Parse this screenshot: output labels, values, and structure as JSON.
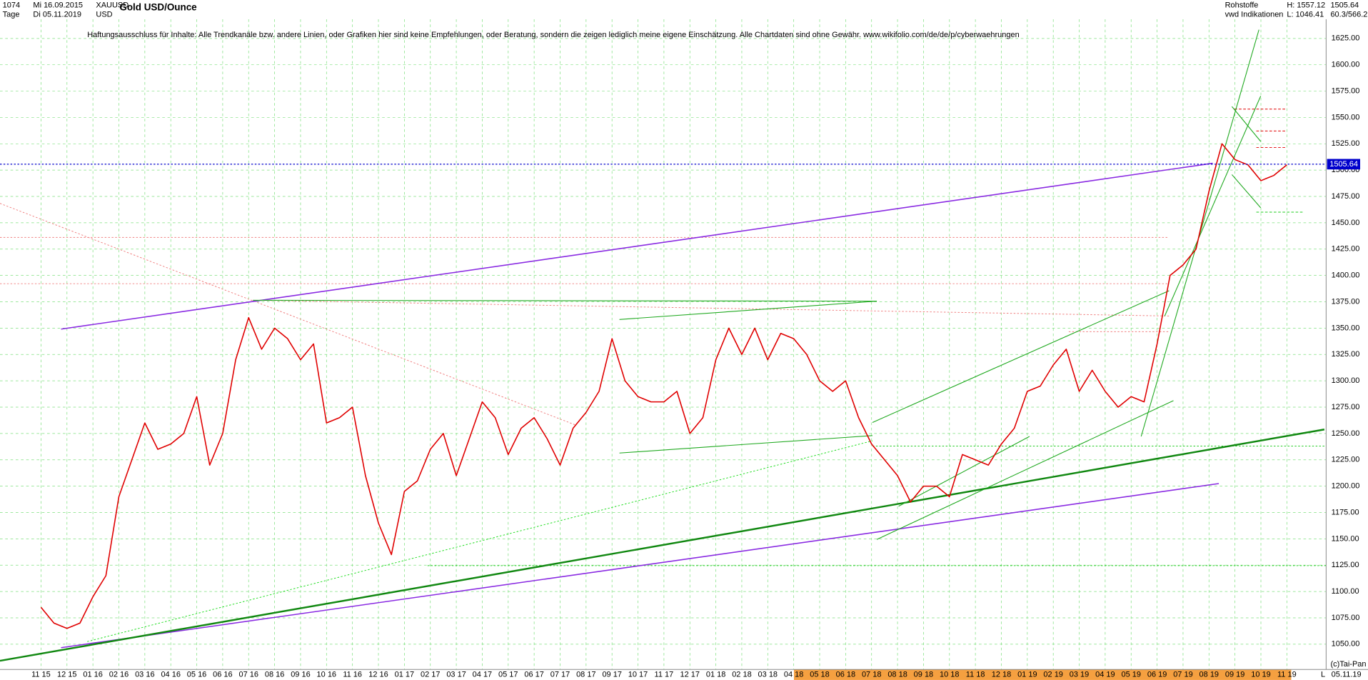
{
  "chart_data": {
    "type": "line",
    "title": "Gold USD/Ounce",
    "header_left": [
      "1074",
      "Mi 16.09.2015",
      "XAUUSD",
      "Tage",
      "Di 05.11.2019",
      "USD"
    ],
    "header_right": [
      "Rohstoffe",
      "vwd Indikationen",
      "H: 1557.12",
      "L: 1046.41",
      "1505.64",
      "60.3/566.2"
    ],
    "annotation": "Haftungsausschluss für Inhalte: Alle Trendkanäle bzw. andere Linien, oder Grafiken hier sind keine Empfehlungen, oder Beratung, sondern die zeigen lediglich meine eigene Einschätzung. Alle Chartdaten sind ohne Gewähr.  www.wikifolio.com/de/de/p/cyberwaehrungen",
    "footer": [
      "(c)Tai-Pan",
      "L",
      "05.11.19"
    ],
    "categories": [
      "11 15",
      null,
      "12 15",
      null,
      "01 16",
      null,
      "02 16",
      null,
      "03 16",
      null,
      "04 16",
      null,
      "05 16",
      null,
      "06 16",
      null,
      "07 16",
      null,
      "08 16",
      null,
      "09 16",
      null,
      "10 16",
      null,
      "11 16",
      null,
      "12 16",
      null,
      "01 17",
      null,
      "02 17",
      null,
      "03 17",
      null,
      "04 17",
      null,
      "05 17",
      null,
      "06 17",
      null,
      "07 17",
      null,
      "08 17",
      null,
      "09 17",
      null,
      "10 17",
      null,
      "11 17",
      null,
      "12 17",
      null,
      "01 18",
      null,
      "02 18",
      null,
      "03 18",
      null,
      "04 18",
      null,
      "05 18",
      null,
      "06 18",
      null,
      "07 18",
      null,
      "08 18",
      null,
      "09 18",
      null,
      "10 18",
      null,
      "11 18",
      null,
      "12 18",
      null,
      "01 19",
      null,
      "02 19",
      null,
      "03 19",
      null,
      "04 19",
      null,
      "05 19",
      null,
      "06 19",
      null,
      "07 19",
      null,
      "08 19",
      null,
      "09 19",
      null,
      "10 19",
      null,
      "11 19"
    ],
    "values": [
      1085,
      1070,
      1065,
      1070,
      1095,
      1115,
      1190,
      1225,
      1260,
      1235,
      1240,
      1250,
      1285,
      1220,
      1250,
      1320,
      1360,
      1330,
      1350,
      1340,
      1320,
      1335,
      1260,
      1265,
      1275,
      1210,
      1165,
      1135,
      1195,
      1205,
      1235,
      1250,
      1210,
      1245,
      1280,
      1265,
      1230,
      1255,
      1265,
      1245,
      1220,
      1255,
      1270,
      1290,
      1340,
      1300,
      1285,
      1280,
      1280,
      1290,
      1250,
      1265,
      1320,
      1350,
      1325,
      1350,
      1320,
      1345,
      1340,
      1325,
      1300,
      1290,
      1300,
      1265,
      1240,
      1225,
      1210,
      1185,
      1200,
      1200,
      1190,
      1230,
      1225,
      1220,
      1240,
      1255,
      1290,
      1295,
      1315,
      1330,
      1290,
      1310,
      1290,
      1275,
      1285,
      1280,
      1335,
      1400,
      1410,
      1425,
      1480,
      1525,
      1510,
      1505,
      1490,
      1495,
      1505
    ],
    "color": "#e00000",
    "last_value": {
      "value": 1505.64,
      "label": "1505.64"
    },
    "last_color": "#0000cc",
    "ylim": [
      1037.5,
      1650
    ],
    "yticks": [
      {
        "value": 1050,
        "label": "1050.00"
      },
      {
        "value": 1075,
        "label": "1075.00"
      },
      {
        "value": 1100,
        "label": "1100.00"
      },
      {
        "value": 1125,
        "label": "1125.00"
      },
      {
        "value": 1150,
        "label": "1150.00"
      },
      {
        "value": 1175,
        "label": "1175.00"
      },
      {
        "value": 1200,
        "label": "1200.00"
      },
      {
        "value": 1225,
        "label": "1225.00"
      },
      {
        "value": 1250,
        "label": "1250.00"
      },
      {
        "value": 1275,
        "label": "1275.00"
      },
      {
        "value": 1300,
        "label": "1300.00"
      },
      {
        "value": 1325,
        "label": "1325.00"
      },
      {
        "value": 1350,
        "label": "1350.00"
      },
      {
        "value": 1375,
        "label": "1375.00"
      },
      {
        "value": 1400,
        "label": "1400.00"
      },
      {
        "value": 1425,
        "label": "1425.00"
      },
      {
        "value": 1450,
        "label": "1450.00"
      },
      {
        "value": 1475,
        "label": "1475.00"
      },
      {
        "value": 1500,
        "label": "1500.00"
      },
      {
        "value": 1525,
        "label": "1525.00"
      },
      {
        "value": 1550,
        "label": "1550.00"
      },
      {
        "value": 1575,
        "label": "1575.00"
      },
      {
        "value": 1600,
        "label": "1600.00"
      },
      {
        "value": 1625,
        "label": "1625.00"
      }
    ],
    "grid": true
  }
}
